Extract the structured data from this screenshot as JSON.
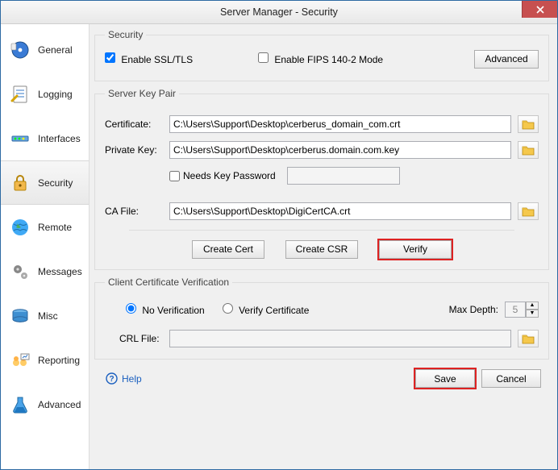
{
  "window": {
    "title": "Server Manager - Security"
  },
  "colors": {
    "window_border": "#2d6aa3",
    "group_border": "#dcdcdc",
    "highlight": "#d22222",
    "close_bg": "#c75050",
    "link": "#1a5fbf"
  },
  "sidebar": {
    "items": [
      {
        "label": "General",
        "icon": "disc-icon",
        "active": false
      },
      {
        "label": "Logging",
        "icon": "log-icon",
        "active": false
      },
      {
        "label": "Interfaces",
        "icon": "interfaces-icon",
        "active": false
      },
      {
        "label": "Security",
        "icon": "lock-icon",
        "active": true
      },
      {
        "label": "Remote",
        "icon": "globe-icon",
        "active": false
      },
      {
        "label": "Messages",
        "icon": "gears-icon",
        "active": false
      },
      {
        "label": "Misc",
        "icon": "drum-icon",
        "active": false
      },
      {
        "label": "Reporting",
        "icon": "reporting-icon",
        "active": false
      },
      {
        "label": "Advanced",
        "icon": "flask-icon",
        "active": false
      }
    ]
  },
  "security_group": {
    "legend": "Security",
    "enable_ssl": {
      "label": "Enable SSL/TLS",
      "checked": true
    },
    "enable_fips": {
      "label": "Enable FIPS 140-2 Mode",
      "checked": false
    },
    "advanced_btn": "Advanced"
  },
  "keypair_group": {
    "legend": "Server Key Pair",
    "certificate": {
      "label": "Certificate:",
      "value": "C:\\Users\\Support\\Desktop\\cerberus_domain_com.crt"
    },
    "private_key": {
      "label": "Private Key:",
      "value": "C:\\Users\\Support\\Desktop\\cerberus.domain.com.key"
    },
    "needs_pw": {
      "label": "Needs Key Password",
      "checked": false,
      "password_value": ""
    },
    "ca_file": {
      "label": "CA File:",
      "value": "C:\\Users\\Support\\Desktop\\DigiCertCA.crt"
    },
    "buttons": {
      "create_cert": "Create Cert",
      "create_csr": "Create CSR",
      "verify": "Verify"
    }
  },
  "clientcert_group": {
    "legend": "Client Certificate Verification",
    "no_verification": {
      "label": "No Verification",
      "checked": true
    },
    "verify_certificate": {
      "label": "Verify Certificate",
      "checked": false
    },
    "max_depth": {
      "label": "Max Depth:",
      "value": "5"
    },
    "crl_file": {
      "label": "CRL File:",
      "value": ""
    }
  },
  "footer": {
    "help": "Help",
    "save": "Save",
    "cancel": "Cancel"
  }
}
